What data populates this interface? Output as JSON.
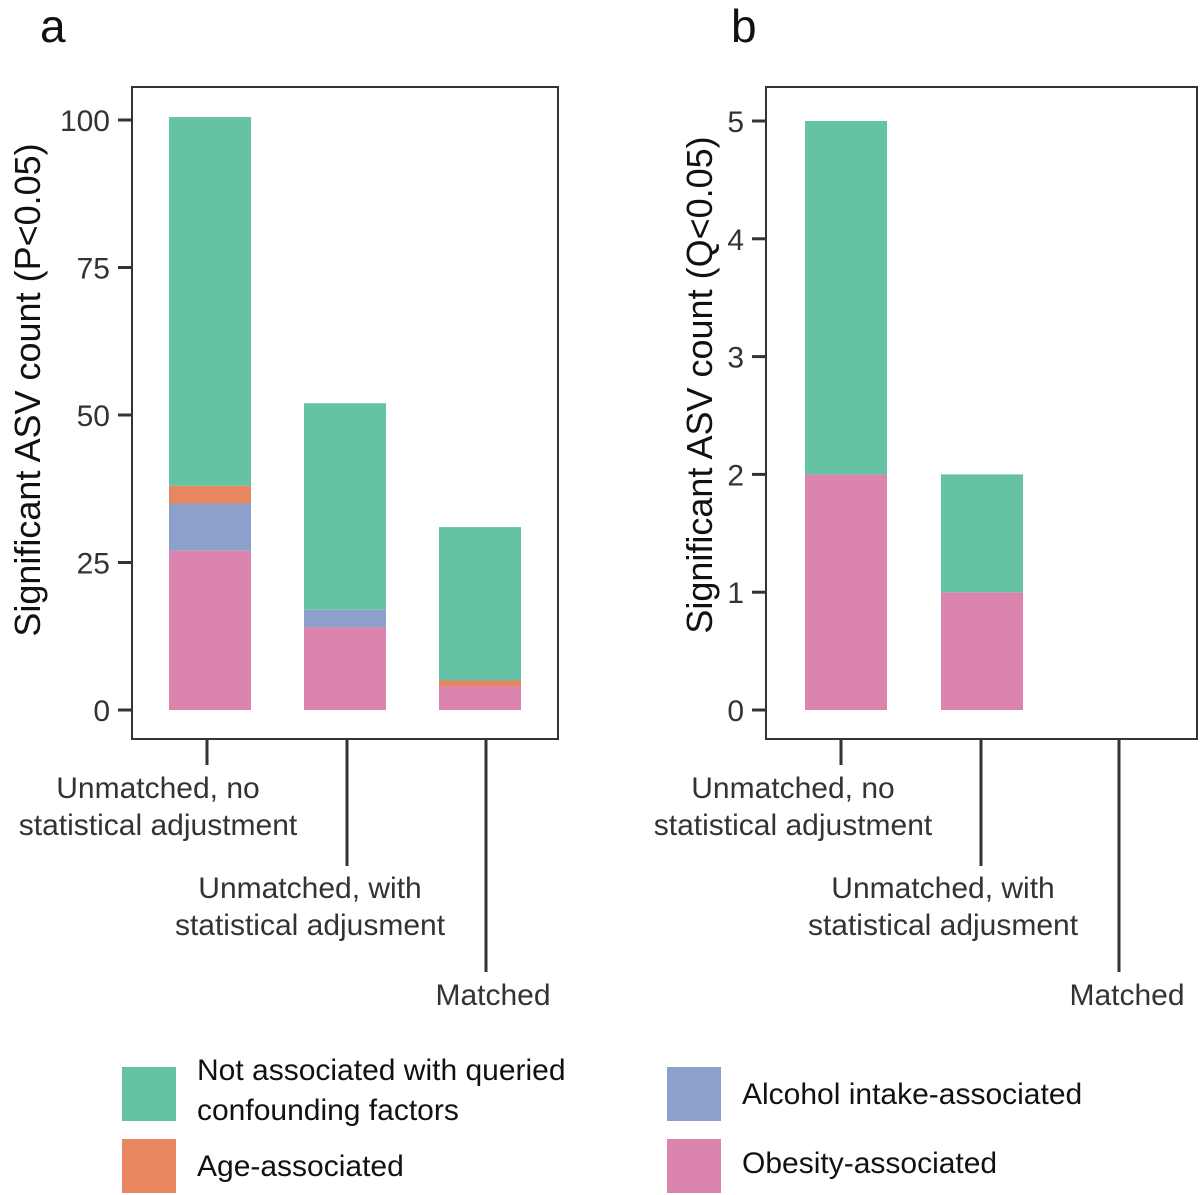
{
  "chart_data": [
    {
      "panel": "a",
      "type": "bar",
      "stacked": true,
      "ylabel": "Significant ASV count (P<0.05)",
      "xlabel": "",
      "ylim": [
        0,
        105
      ],
      "yticks": [
        0,
        25,
        50,
        75,
        100
      ],
      "categories": [
        "Unmatched, no statistical adjustment",
        "Unmatched, with statistical adjusment",
        "Matched"
      ],
      "category_lines": [
        [
          "Unmatched, no",
          "statistical adjustment"
        ],
        [
          "Unmatched, with",
          "statistical adjusment"
        ],
        [
          "Matched"
        ]
      ],
      "series": [
        {
          "name": "Obesity-associated",
          "values": [
            27,
            14,
            4
          ]
        },
        {
          "name": "Alcohol intake-associated",
          "values": [
            8,
            3,
            0
          ]
        },
        {
          "name": "Age-associated",
          "values": [
            3,
            0,
            1
          ]
        },
        {
          "name": "Not associated with queried confounding factors",
          "values": [
            62.5,
            35,
            26
          ]
        }
      ]
    },
    {
      "panel": "b",
      "type": "bar",
      "stacked": true,
      "ylabel": "Significant ASV count (Q<0.05)",
      "xlabel": "",
      "ylim": [
        0,
        5.3
      ],
      "yticks": [
        0,
        1,
        2,
        3,
        4,
        5
      ],
      "categories": [
        "Unmatched, no statistical adjustment",
        "Unmatched, with statistical adjusment",
        "Matched"
      ],
      "category_lines": [
        [
          "Unmatched, no",
          "statistical adjustment"
        ],
        [
          "Unmatched, with",
          "statistical adjusment"
        ],
        [
          "Matched"
        ]
      ],
      "series": [
        {
          "name": "Obesity-associated",
          "values": [
            2,
            1,
            0
          ]
        },
        {
          "name": "Alcohol intake-associated",
          "values": [
            0,
            0,
            0
          ]
        },
        {
          "name": "Age-associated",
          "values": [
            0,
            0,
            0
          ]
        },
        {
          "name": "Not associated with queried confounding factors",
          "values": [
            3,
            1,
            0
          ]
        }
      ]
    }
  ],
  "legend": {
    "items": [
      {
        "lines": [
          "Not associated with queried",
          "confounding factors"
        ],
        "color": "#66c2a5"
      },
      {
        "lines": [
          "Age-associated"
        ],
        "color": "#e8875f"
      },
      {
        "lines": [
          "Alcohol intake-associated"
        ],
        "color": "#8da0cb"
      },
      {
        "lines": [
          "Obesity-associated"
        ],
        "color": "#db84ad"
      }
    ]
  },
  "colors": {
    "Obesity-associated": "#db84ad",
    "Alcohol intake-associated": "#8da0cb",
    "Age-associated": "#e8875f",
    "Not associated with queried confounding factors": "#66c2a5"
  }
}
